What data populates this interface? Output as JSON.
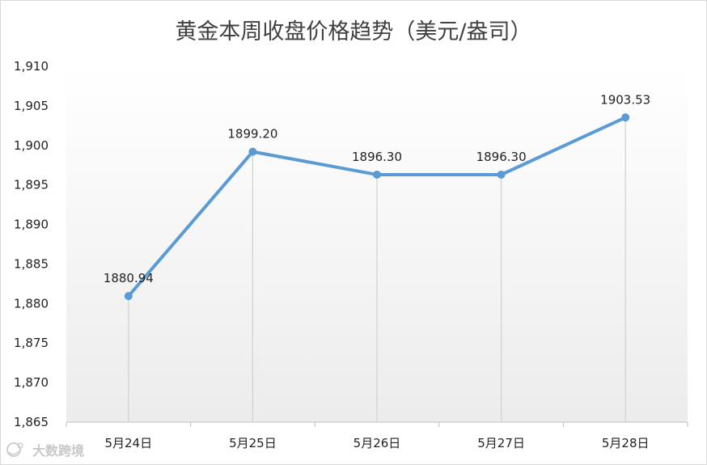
{
  "chart_data": {
    "type": "line",
    "title": "黄金本周收盘价格趋势（美元/盎司）",
    "xlabel": "",
    "ylabel": "",
    "categories": [
      "5月24日",
      "5月25日",
      "5月26日",
      "5月27日",
      "5月28日"
    ],
    "series": [
      {
        "values": [
          1880.94,
          1899.2,
          1896.3,
          1896.3,
          1903.53
        ],
        "data_labels": [
          "1880.94",
          "1899.20",
          "1896.30",
          "1896.30",
          "1903.53"
        ],
        "color": "#5b9bd5"
      }
    ],
    "ylim": [
      1865,
      1910
    ],
    "yticks": [
      1865,
      1870,
      1875,
      1880,
      1885,
      1890,
      1895,
      1900,
      1905,
      1910
    ],
    "ytick_labels": [
      "1,865",
      "1,870",
      "1,875",
      "1,880",
      "1,885",
      "1,890",
      "1,895",
      "1,900",
      "1,905",
      "1,910"
    ],
    "drop_lines": true,
    "gridlines": false,
    "legend": "none",
    "plot_background": "gradient-light-gray"
  },
  "watermark": {
    "text": "大数跨境",
    "icon": "brand-logo-icon"
  }
}
